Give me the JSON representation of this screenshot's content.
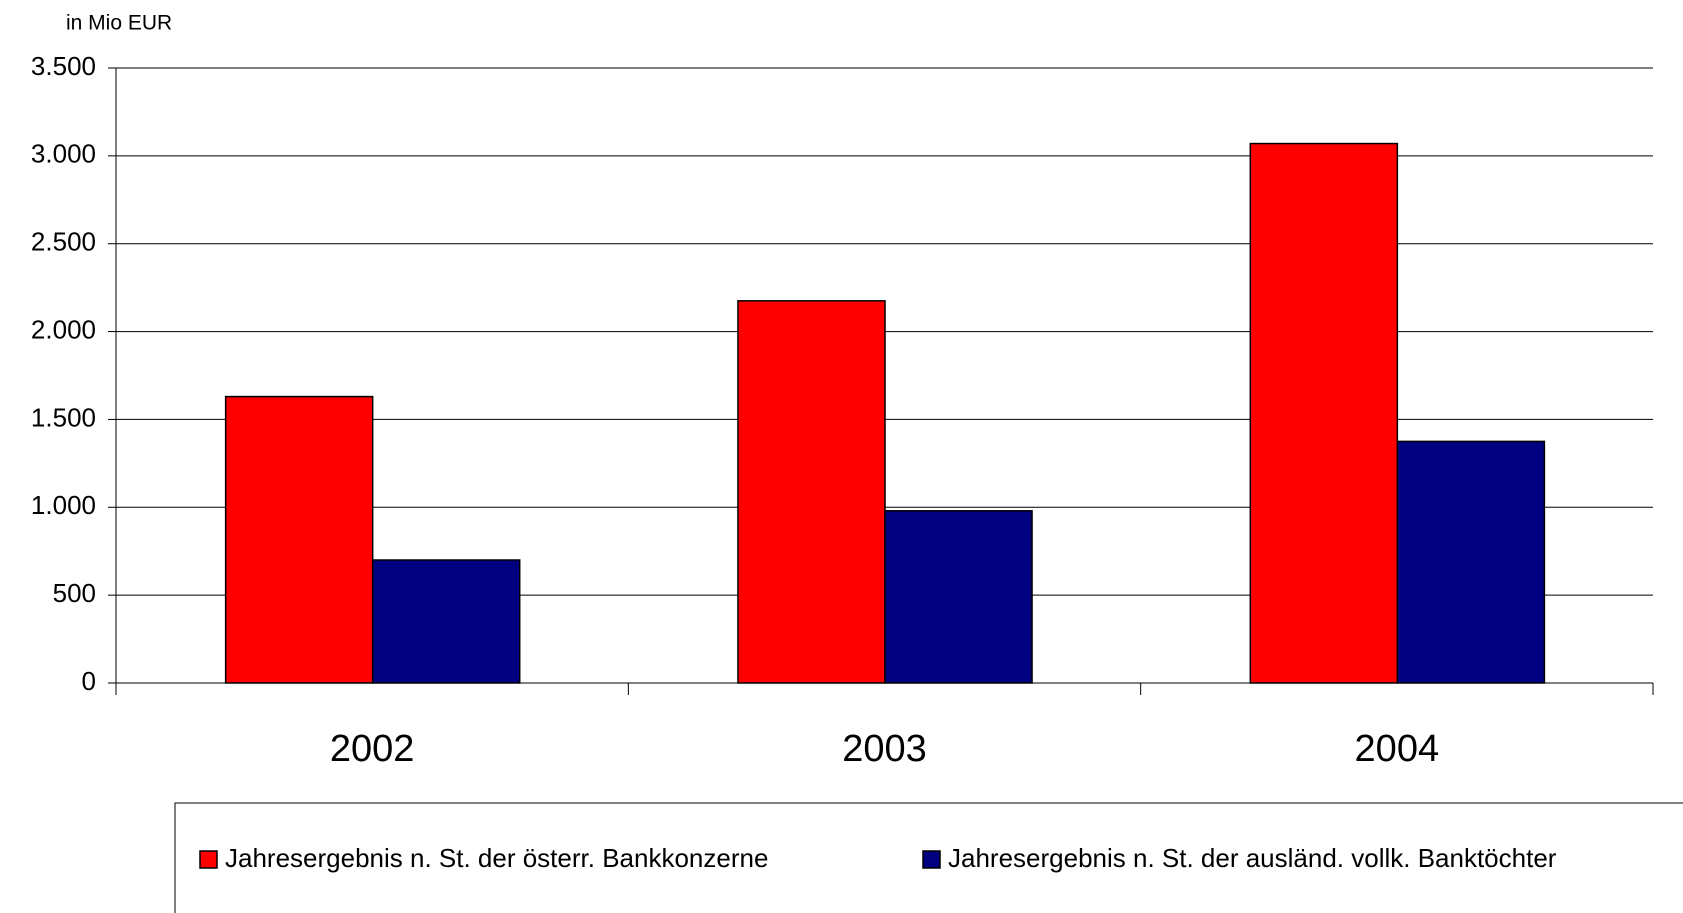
{
  "chart_data": {
    "type": "bar",
    "y_unit_label": "in Mio EUR",
    "categories": [
      "2002",
      "2003",
      "2004"
    ],
    "series": [
      {
        "name": "Jahresergebnis n. St. der österr. Bankkonzerne",
        "color": "#ff0000",
        "values": [
          1630,
          2175,
          3070
        ]
      },
      {
        "name": "Jahresergebnis n. St. der ausländ. vollk. Banktöchter",
        "color": "#000080",
        "values": [
          700,
          980,
          1375
        ]
      }
    ],
    "ylim": [
      0,
      3500
    ],
    "yticks": [
      0,
      500,
      {
        "value": 1000,
        "label": "1.000"
      },
      {
        "value": 1500,
        "label": "1.500"
      },
      {
        "value": 2000,
        "label": "2.000"
      },
      {
        "value": 2500,
        "label": "2.500"
      },
      {
        "value": 3000,
        "label": "3.000"
      },
      {
        "value": 3500,
        "label": "3.500"
      }
    ],
    "grid": true,
    "legend": "bottom"
  }
}
